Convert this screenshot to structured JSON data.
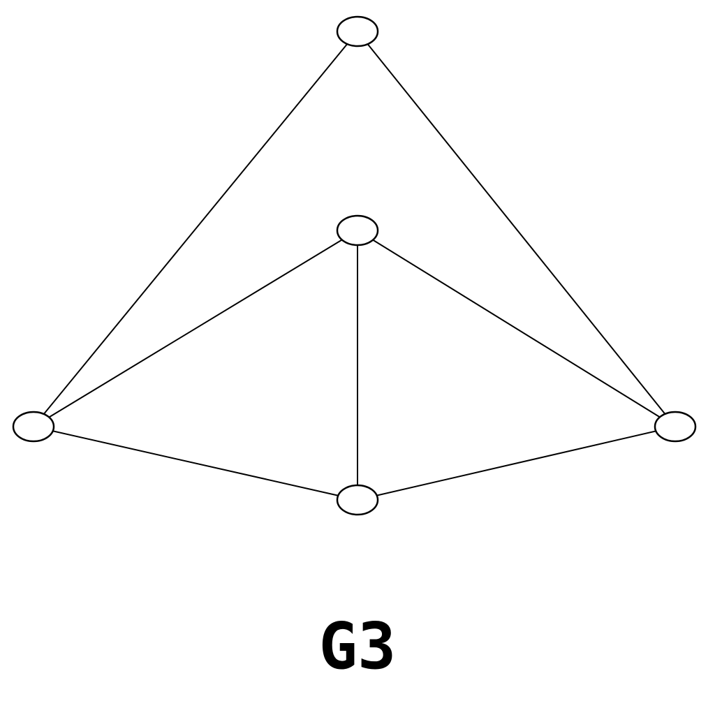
{
  "graph": {
    "label": "G3",
    "nodes": [
      {
        "id": "n1"
      },
      {
        "id": "n2"
      },
      {
        "id": "n3"
      },
      {
        "id": "n4"
      },
      {
        "id": "n5"
      }
    ],
    "edges": [
      {
        "from": "n1",
        "to": "n3"
      },
      {
        "from": "n1",
        "to": "n5"
      },
      {
        "from": "n2",
        "to": "n3"
      },
      {
        "from": "n2",
        "to": "n4"
      },
      {
        "from": "n2",
        "to": "n5"
      },
      {
        "from": "n3",
        "to": "n4"
      },
      {
        "from": "n4",
        "to": "n5"
      }
    ],
    "colors": {
      "line": "#000000",
      "node_fill": "#ffffff",
      "background": "#ffffff"
    }
  }
}
